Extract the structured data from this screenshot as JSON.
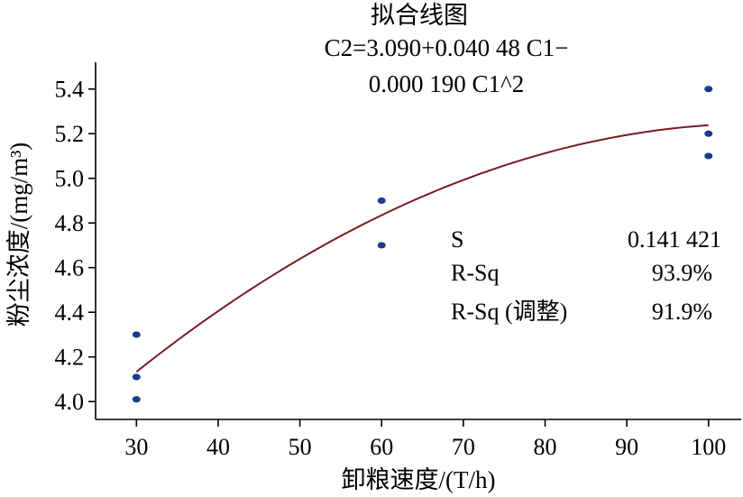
{
  "chart_data": {
    "type": "scatter",
    "title": "拟合线图",
    "subtitle_lines": [
      "C2=3.090+0.040 48 C1−",
      "0.000 190 C1^2"
    ],
    "xlabel": "卸粮速度/(T/h)",
    "ylabel": "粉尘浓度/(mg/m³)",
    "x_ticks": [
      "30",
      "40",
      "50",
      "60",
      "70",
      "80",
      "90",
      "100"
    ],
    "y_ticks": [
      "4.0",
      "4.2",
      "4.4",
      "4.6",
      "4.8",
      "5.0",
      "5.2",
      "5.4"
    ],
    "xlim": [
      25,
      104
    ],
    "ylim": [
      3.92,
      5.52
    ],
    "grid": false,
    "points": [
      {
        "x": 30,
        "y": 4.3
      },
      {
        "x": 30,
        "y": 4.11
      },
      {
        "x": 30,
        "y": 4.01
      },
      {
        "x": 60,
        "y": 4.9
      },
      {
        "x": 60,
        "y": 4.7
      },
      {
        "x": 100,
        "y": 5.4
      },
      {
        "x": 100,
        "y": 5.2
      },
      {
        "x": 100,
        "y": 5.1
      }
    ],
    "fit": {
      "type": "quadratic",
      "intercept": 3.09,
      "b1": 0.04048,
      "b2": -0.00019,
      "x_range": [
        30,
        100
      ]
    },
    "stats": [
      {
        "label": "S",
        "value": "0.141 421"
      },
      {
        "label": "R-Sq",
        "value": "93.9%"
      },
      {
        "label": "R-Sq (调整)",
        "value": "91.9%"
      }
    ],
    "colors": {
      "points": "#1a3c8c",
      "fit_line": "#7a1a22",
      "axis": "#000000"
    }
  }
}
